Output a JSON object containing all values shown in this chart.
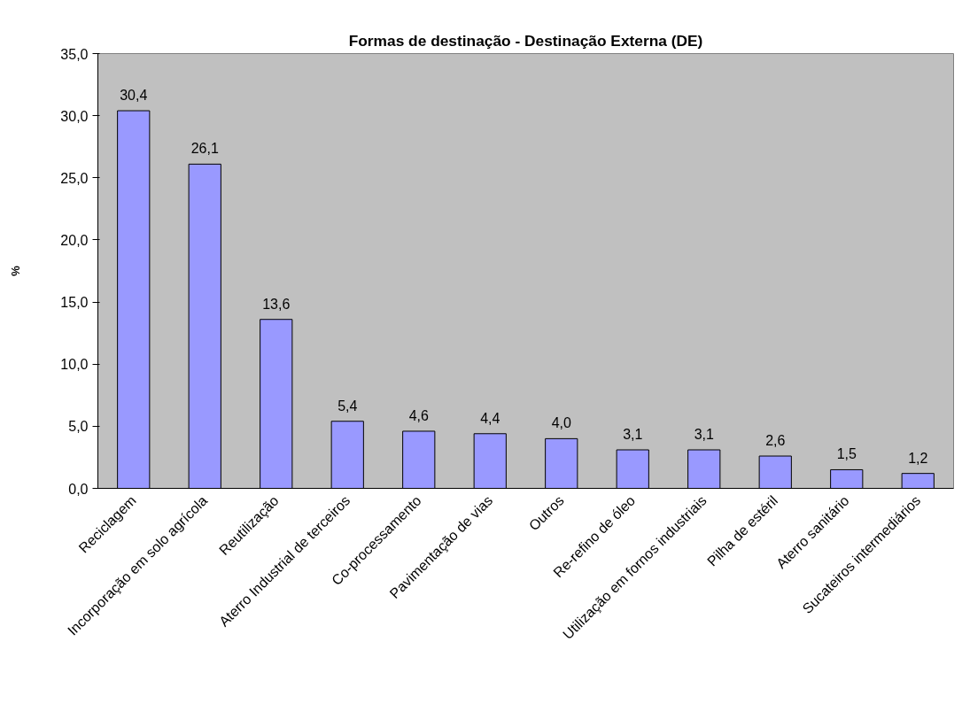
{
  "chart_data": {
    "type": "bar",
    "title": "Formas de destinação - Destinação Externa (DE)",
    "ylabel": "%",
    "categories": [
      "Reciclagem",
      "Incorporação em solo agrícola",
      "Reutilização",
      "Aterro Industrial de terceiros",
      "Co-processamento",
      "Pavimentação de vias",
      "Outros",
      "Re-refino de óleo",
      "Utilização em fornos industriais",
      "Pilha de estéril",
      "Aterro sanitário",
      "Sucateiros intermediários"
    ],
    "values": [
      30.4,
      26.1,
      13.6,
      5.4,
      4.6,
      4.4,
      4.0,
      3.1,
      3.1,
      2.6,
      1.5,
      1.2
    ],
    "value_labels": [
      "30,4",
      "26,1",
      "13,6",
      "5,4",
      "4,6",
      "4,4",
      "4,0",
      "3,1",
      "3,1",
      "2,6",
      "1,5",
      "1,2"
    ],
    "color": "#9999ff",
    "ylim": [
      0,
      35
    ],
    "yticks": [
      {
        "value": 0,
        "label": "0,0"
      },
      {
        "value": 5,
        "label": "5,0"
      },
      {
        "value": 10,
        "label": "10,0"
      },
      {
        "value": 15,
        "label": "15,0"
      },
      {
        "value": 20,
        "label": "20,0"
      },
      {
        "value": 25,
        "label": "25,0"
      },
      {
        "value": 30,
        "label": "30,0"
      },
      {
        "value": 35,
        "label": "35,0"
      }
    ],
    "grid": false
  }
}
